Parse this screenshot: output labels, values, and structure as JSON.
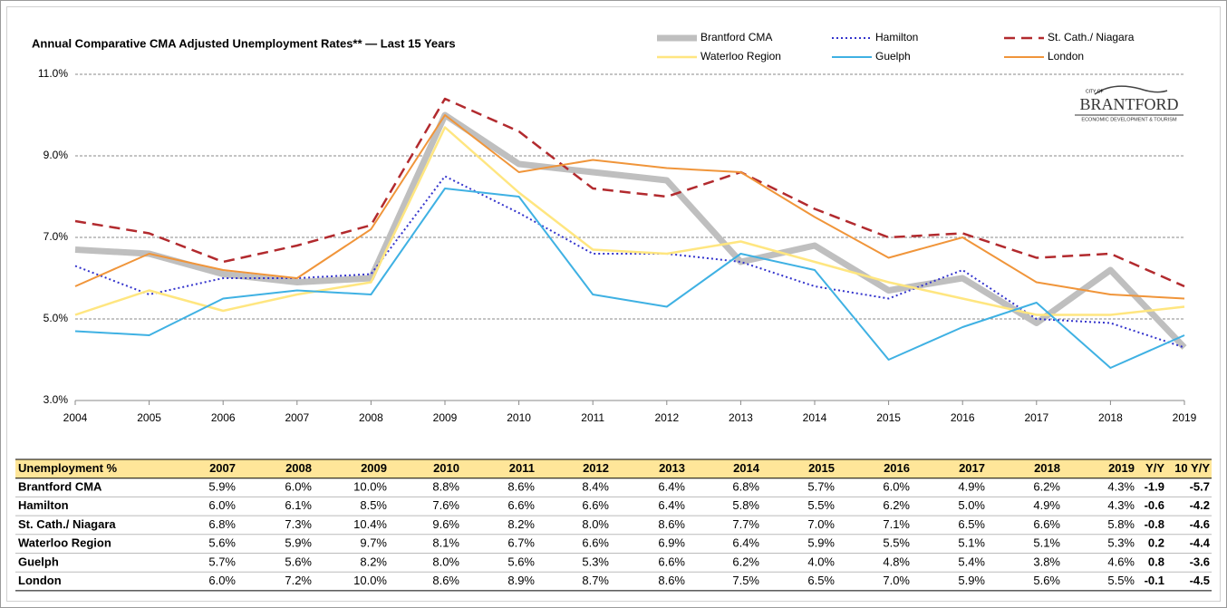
{
  "chart_data": {
    "type": "line",
    "title": "Annual Comparative CMA Adjusted Unemployment Rates** — Last 15 Years",
    "x": [
      2004,
      2005,
      2006,
      2007,
      2008,
      2009,
      2010,
      2011,
      2012,
      2013,
      2014,
      2015,
      2016,
      2017,
      2018,
      2019
    ],
    "xlim": [
      2004,
      2019
    ],
    "ylim": [
      3,
      11
    ],
    "yticks": [
      {
        "value": 3,
        "label": "3.0%"
      },
      {
        "value": 5,
        "label": "5.0%"
      },
      {
        "value": 7,
        "label": "7.0%"
      },
      {
        "value": 9,
        "label": "9.0%"
      },
      {
        "value": 11,
        "label": "11.0%"
      }
    ],
    "grid": true,
    "legend": "top-right",
    "series": [
      {
        "name": "Brantford CMA",
        "color": "#bfbfbf",
        "width": 7,
        "style": "solid",
        "values": [
          6.7,
          6.6,
          6.1,
          5.9,
          6.0,
          10.0,
          8.8,
          8.6,
          8.4,
          6.4,
          6.8,
          5.7,
          6.0,
          4.9,
          6.2,
          4.3
        ]
      },
      {
        "name": "Hamilton",
        "color": "#3333cc",
        "width": 2,
        "style": "dotted",
        "values": [
          6.3,
          5.6,
          6.0,
          6.0,
          6.1,
          8.5,
          7.6,
          6.6,
          6.6,
          6.4,
          5.8,
          5.5,
          6.2,
          5.0,
          4.9,
          4.3
        ]
      },
      {
        "name": "St. Cath./ Niagara",
        "color": "#b22a2e",
        "width": 2.5,
        "style": "dashed",
        "values": [
          7.4,
          7.1,
          6.4,
          6.8,
          7.3,
          10.4,
          9.6,
          8.2,
          8.0,
          8.6,
          7.7,
          7.0,
          7.1,
          6.5,
          6.6,
          5.8
        ]
      },
      {
        "name": "Waterloo Region",
        "color": "#ffe680",
        "width": 2.5,
        "style": "solid",
        "values": [
          5.1,
          5.7,
          5.2,
          5.6,
          5.9,
          9.7,
          8.1,
          6.7,
          6.6,
          6.9,
          6.4,
          5.9,
          5.5,
          5.1,
          5.1,
          5.3
        ]
      },
      {
        "name": "Guelph",
        "color": "#3fb1e3",
        "width": 2,
        "style": "solid",
        "values": [
          4.7,
          4.6,
          5.5,
          5.7,
          5.6,
          8.2,
          8.0,
          5.6,
          5.3,
          6.6,
          6.2,
          4.0,
          4.8,
          5.4,
          3.8,
          4.6
        ]
      },
      {
        "name": "London",
        "color": "#f0953a",
        "width": 2,
        "style": "solid",
        "values": [
          5.8,
          6.6,
          6.2,
          6.0,
          7.2,
          10.0,
          8.6,
          8.9,
          8.7,
          8.6,
          7.5,
          6.5,
          7.0,
          5.9,
          5.6,
          5.5
        ]
      }
    ]
  },
  "logo": {
    "top": "CITY OF",
    "name": "BRANTFORD",
    "tagline": "ECONOMIC DEVELOPMENT & TOURISM"
  },
  "table": {
    "header": [
      "Unemployment %",
      "2007",
      "2008",
      "2009",
      "2010",
      "2011",
      "2012",
      "2013",
      "2014",
      "2015",
      "2016",
      "2017",
      "2018",
      "2019",
      "Y/Y",
      "10 Y/Y"
    ],
    "rows": [
      [
        "Brantford CMA",
        "5.9%",
        "6.0%",
        "10.0%",
        "8.8%",
        "8.6%",
        "8.4%",
        "6.4%",
        "6.8%",
        "5.7%",
        "6.0%",
        "4.9%",
        "6.2%",
        "4.3%",
        "-1.9",
        "-5.7"
      ],
      [
        "Hamilton",
        "6.0%",
        "6.1%",
        "8.5%",
        "7.6%",
        "6.6%",
        "6.6%",
        "6.4%",
        "5.8%",
        "5.5%",
        "6.2%",
        "5.0%",
        "4.9%",
        "4.3%",
        "-0.6",
        "-4.2"
      ],
      [
        "St. Cath./ Niagara",
        "6.8%",
        "7.3%",
        "10.4%",
        "9.6%",
        "8.2%",
        "8.0%",
        "8.6%",
        "7.7%",
        "7.0%",
        "7.1%",
        "6.5%",
        "6.6%",
        "5.8%",
        "-0.8",
        "-4.6"
      ],
      [
        "Waterloo Region",
        "5.6%",
        "5.9%",
        "9.7%",
        "8.1%",
        "6.7%",
        "6.6%",
        "6.9%",
        "6.4%",
        "5.9%",
        "5.5%",
        "5.1%",
        "5.1%",
        "5.3%",
        "0.2",
        "-4.4"
      ],
      [
        "Guelph",
        "5.7%",
        "5.6%",
        "8.2%",
        "8.0%",
        "5.6%",
        "5.3%",
        "6.6%",
        "6.2%",
        "4.0%",
        "4.8%",
        "5.4%",
        "3.8%",
        "4.6%",
        "0.8",
        "-3.6"
      ],
      [
        "London",
        "6.0%",
        "7.2%",
        "10.0%",
        "8.6%",
        "8.9%",
        "8.7%",
        "8.6%",
        "7.5%",
        "6.5%",
        "7.0%",
        "5.9%",
        "5.6%",
        "5.5%",
        "-0.1",
        "-4.5"
      ]
    ]
  }
}
